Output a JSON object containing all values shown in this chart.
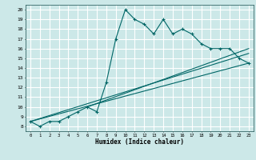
{
  "title": "",
  "xlabel": "Humidex (Indice chaleur)",
  "bg_color": "#cce8e8",
  "grid_color": "#ffffff",
  "line_color": "#006666",
  "xlim": [
    -0.5,
    23.5
  ],
  "ylim": [
    7.5,
    20.5
  ],
  "xticks": [
    0,
    1,
    2,
    3,
    4,
    5,
    6,
    7,
    8,
    9,
    10,
    11,
    12,
    13,
    14,
    15,
    16,
    17,
    18,
    19,
    20,
    21,
    22,
    23
  ],
  "yticks": [
    8,
    9,
    10,
    11,
    12,
    13,
    14,
    15,
    16,
    17,
    18,
    19,
    20
  ],
  "main_line": {
    "x": [
      0,
      1,
      2,
      3,
      4,
      5,
      6,
      7,
      8,
      9,
      10,
      11,
      12,
      13,
      14,
      15,
      16,
      17,
      18,
      19,
      20,
      21,
      22,
      23
    ],
    "y": [
      8.5,
      8.0,
      8.5,
      8.5,
      9.0,
      9.5,
      10.0,
      9.5,
      12.5,
      17.0,
      20.0,
      19.0,
      18.5,
      17.5,
      19.0,
      17.5,
      18.0,
      17.5,
      16.5,
      16.0,
      16.0,
      16.0,
      15.0,
      14.5
    ]
  },
  "line2": {
    "x": [
      0,
      23
    ],
    "y": [
      8.5,
      14.5
    ]
  },
  "line3": {
    "x": [
      0,
      23
    ],
    "y": [
      8.5,
      15.5
    ]
  },
  "line4": {
    "x": [
      6,
      23
    ],
    "y": [
      10.0,
      16.0
    ]
  }
}
